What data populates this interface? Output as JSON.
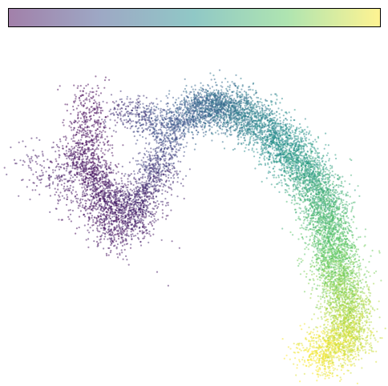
{
  "chart_data": {
    "type": "scatter",
    "title": "",
    "xlabel": "",
    "ylabel": "",
    "axes_visible": false,
    "grid": false,
    "xlim": [
      0,
      100
    ],
    "ylim": [
      0,
      100
    ],
    "colormap": "viridis",
    "colormap_stops": [
      "#440154",
      "#3b528b",
      "#21918c",
      "#5ec962",
      "#fde725"
    ],
    "colorbar": {
      "orientation": "horizontal",
      "placement": "top",
      "tick_labels": [],
      "alpha": 0.5
    },
    "marker_alpha": 0.5,
    "segments": [
      {
        "name": "segment-1",
        "count": 900,
        "spread": 2.8,
        "color_range": [
          0.0,
          0.06
        ],
        "path": [
          [
            21,
            83
          ],
          [
            22,
            74
          ],
          [
            23,
            66
          ],
          [
            24,
            59
          ],
          [
            25,
            52
          ],
          [
            27,
            45
          ],
          [
            30,
            39
          ]
        ]
      },
      {
        "name": "segment-2",
        "count": 800,
        "spread": 2.6,
        "color_range": [
          0.03,
          0.1
        ],
        "path": [
          [
            17,
            68
          ],
          [
            19,
            64
          ],
          [
            22,
            60
          ],
          [
            25,
            57
          ],
          [
            28,
            54
          ],
          [
            31,
            49
          ],
          [
            35,
            44
          ]
        ]
      },
      {
        "name": "segment-3",
        "count": 350,
        "spread": 3.5,
        "color_range": [
          0.02,
          0.08
        ],
        "path": [
          [
            29,
            42
          ],
          [
            26,
            46
          ],
          [
            20,
            51
          ],
          [
            14,
            57
          ],
          [
            8,
            63
          ],
          [
            4,
            66
          ]
        ]
      },
      {
        "name": "segment-4",
        "count": 250,
        "spread": 3.0,
        "color_range": [
          0.04,
          0.12
        ],
        "path": [
          [
            33,
            43
          ],
          [
            35,
            48
          ],
          [
            38,
            53
          ],
          [
            41,
            57
          ],
          [
            44,
            60
          ]
        ]
      },
      {
        "name": "segment-5",
        "count": 1200,
        "spread": 2.6,
        "color_range": [
          0.08,
          0.33
        ],
        "path": [
          [
            33,
            48
          ],
          [
            37,
            56
          ],
          [
            41,
            65
          ],
          [
            44,
            72
          ],
          [
            48,
            78
          ],
          [
            53,
            80
          ],
          [
            58,
            79
          ]
        ]
      },
      {
        "name": "segment-6",
        "count": 420,
        "spread": 2.6,
        "color_range": [
          0.12,
          0.28
        ],
        "path": [
          [
            30,
            78
          ],
          [
            34,
            77
          ],
          [
            38,
            76
          ],
          [
            41,
            75
          ],
          [
            44,
            73
          ]
        ]
      },
      {
        "name": "segment-7",
        "count": 7200,
        "spread": 3.4,
        "color_range": [
          0.3,
          1.0
        ],
        "path": [
          [
            50,
            77
          ],
          [
            55,
            80
          ],
          [
            62,
            78
          ],
          [
            68,
            74
          ],
          [
            74,
            68
          ],
          [
            79,
            62
          ],
          [
            83,
            55
          ],
          [
            85,
            48
          ],
          [
            87,
            41
          ],
          [
            88,
            34
          ],
          [
            89,
            27
          ],
          [
            91,
            20
          ],
          [
            92,
            13
          ],
          [
            89,
            10
          ],
          [
            85,
            7
          ],
          [
            82,
            6
          ]
        ]
      }
    ],
    "outliers": [
      [
        4,
        58
      ],
      [
        7,
        57
      ],
      [
        6,
        63
      ],
      [
        18,
        53
      ],
      [
        39,
        42
      ],
      [
        43,
        27
      ],
      [
        40,
        31
      ],
      [
        44,
        40
      ],
      [
        46,
        38
      ],
      [
        30,
        36
      ]
    ]
  }
}
